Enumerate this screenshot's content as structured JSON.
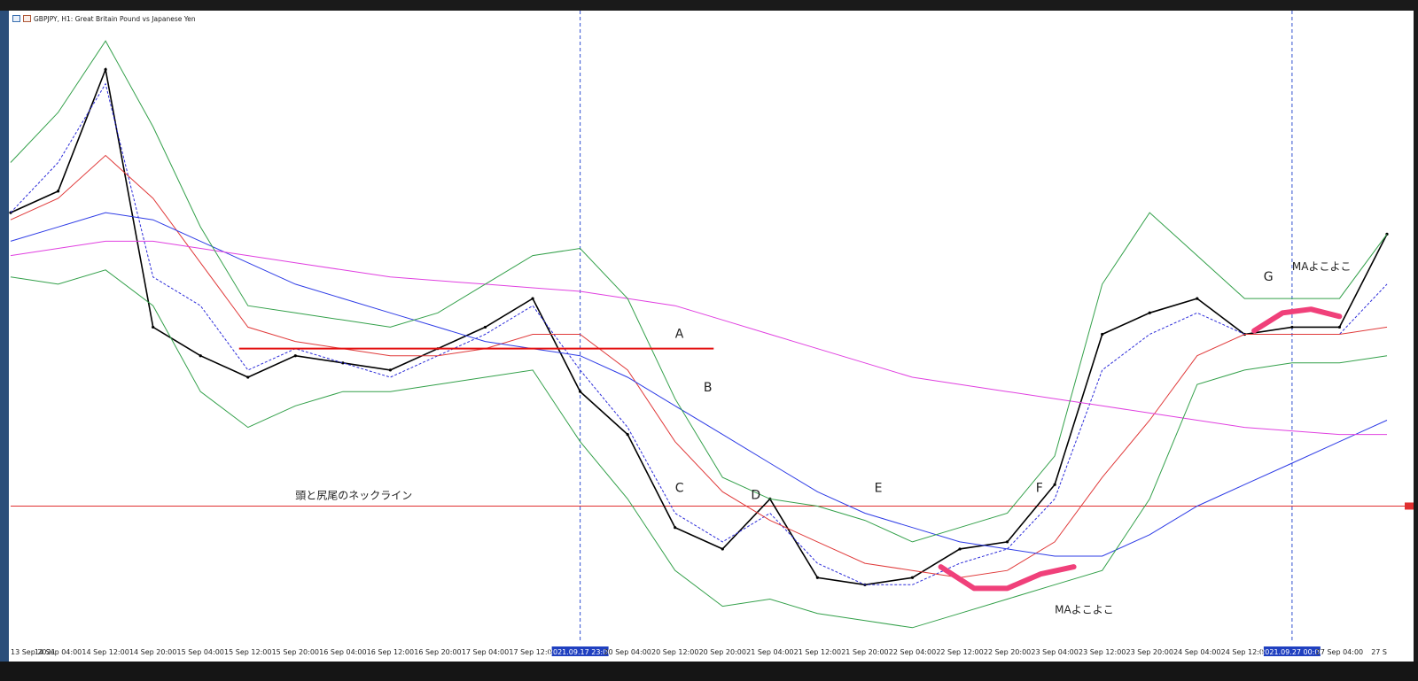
{
  "window": {
    "title": "GBPJPY, H1:  Great Britain Pound vs Japanese Yen"
  },
  "chart_data": {
    "type": "line",
    "symbol": "GBPJPY",
    "timeframe": "H1",
    "x": [
      "13 Sep 2021",
      "14 Sep 04:00",
      "14 Sep 12:00",
      "14 Sep 20:00",
      "15 Sep 04:00",
      "15 Sep 12:00",
      "15 Sep 20:00",
      "16 Sep 04:00",
      "16 Sep 12:00",
      "16 Sep 20:00",
      "17 Sep 04:00",
      "17 Sep 12:00",
      "2021.09.17 23:00",
      "20 Sep 04:00",
      "20 Sep 12:00",
      "20 Sep 20:00",
      "21 Sep 04:00",
      "21 Sep 12:00",
      "21 Sep 20:00",
      "22 Sep 04:00",
      "22 Sep 12:00",
      "22 Sep 20:00",
      "23 Sep 04:00",
      "23 Sep 12:00",
      "23 Sep 20:00",
      "24 Sep 04:00",
      "24 Sep 12:00",
      "2021.09.27 00:00",
      "27 Sep 04:00",
      "27 S"
    ],
    "series": [
      {
        "color": "#000000",
        "values": [
          150.8,
          151.1,
          152.8,
          149.2,
          148.8,
          148.5,
          148.8,
          148.7,
          148.6,
          148.9,
          149.2,
          149.6,
          148.3,
          147.7,
          146.4,
          146.1,
          146.8,
          145.7,
          145.6,
          145.7,
          146.1,
          146.2,
          147.0,
          149.1,
          149.4,
          149.6,
          149.1,
          149.2,
          149.2,
          150.5
        ]
      },
      {
        "color": "#2b2bd9",
        "values": [
          150.8,
          151.5,
          152.6,
          149.9,
          149.5,
          148.6,
          148.9,
          148.7,
          148.5,
          148.8,
          149.1,
          149.5,
          148.6,
          147.8,
          146.6,
          146.2,
          146.6,
          145.9,
          145.6,
          145.6,
          145.9,
          146.1,
          146.8,
          148.6,
          149.1,
          149.4,
          149.1,
          149.1,
          149.1,
          149.8
        ]
      },
      {
        "color": "#e03a3a",
        "values": [
          150.7,
          151.0,
          151.6,
          151.0,
          150.1,
          149.2,
          149.0,
          148.9,
          148.8,
          148.8,
          148.9,
          149.1,
          149.1,
          148.6,
          147.6,
          146.9,
          146.5,
          146.2,
          145.9,
          145.8,
          145.7,
          145.8,
          146.2,
          147.1,
          147.9,
          148.8,
          149.1,
          149.1,
          149.1,
          149.2
        ]
      },
      {
        "color": "#2e3ce6",
        "values": [
          150.4,
          150.6,
          150.8,
          150.7,
          150.4,
          150.1,
          149.8,
          149.6,
          149.4,
          149.2,
          149.0,
          148.9,
          148.8,
          148.5,
          148.1,
          147.7,
          147.3,
          146.9,
          146.6,
          146.4,
          146.2,
          146.1,
          146.0,
          146.0,
          146.3,
          146.7,
          147.0,
          147.3,
          147.6,
          147.9
        ]
      },
      {
        "color": "#e040e0",
        "values": [
          150.2,
          150.3,
          150.4,
          150.4,
          150.3,
          150.2,
          150.1,
          150.0,
          149.9,
          149.85,
          149.8,
          149.75,
          149.7,
          149.6,
          149.5,
          149.3,
          149.1,
          148.9,
          148.7,
          148.5,
          148.4,
          148.3,
          148.2,
          148.1,
          148.0,
          147.9,
          147.8,
          147.75,
          147.7,
          147.7
        ]
      },
      {
        "color": "#33a04a",
        "values": [
          151.5,
          152.2,
          153.2,
          152.0,
          150.6,
          149.5,
          149.4,
          149.3,
          149.2,
          149.4,
          149.8,
          150.2,
          150.3,
          149.6,
          148.2,
          147.1,
          146.8,
          146.7,
          146.5,
          146.2,
          146.4,
          146.6,
          147.4,
          149.8,
          150.8,
          150.2,
          149.6,
          149.6,
          149.6,
          150.5
        ]
      },
      {
        "color": "#33a04a",
        "values": [
          149.9,
          149.8,
          150.0,
          149.5,
          148.3,
          147.8,
          148.1,
          148.3,
          148.3,
          148.4,
          148.5,
          148.6,
          147.6,
          146.8,
          145.8,
          145.3,
          145.4,
          145.2,
          145.1,
          145.0,
          145.2,
          145.4,
          145.6,
          145.8,
          146.8,
          148.4,
          148.6,
          148.7,
          148.7,
          148.8
        ]
      }
    ],
    "annotations": [
      "A",
      "B",
      "C",
      "D",
      "E",
      "F",
      "G",
      "頭と尻尾のネックライン",
      "MAよこよこ",
      "MAよこよこ"
    ],
    "neckline_price": 148.9,
    "hline_price": 146.7,
    "vlines": [
      "2021.09.17 23:00",
      "2021.09.27 00:00"
    ],
    "ylim": [
      144.8,
      153.4
    ],
    "grid": false
  }
}
